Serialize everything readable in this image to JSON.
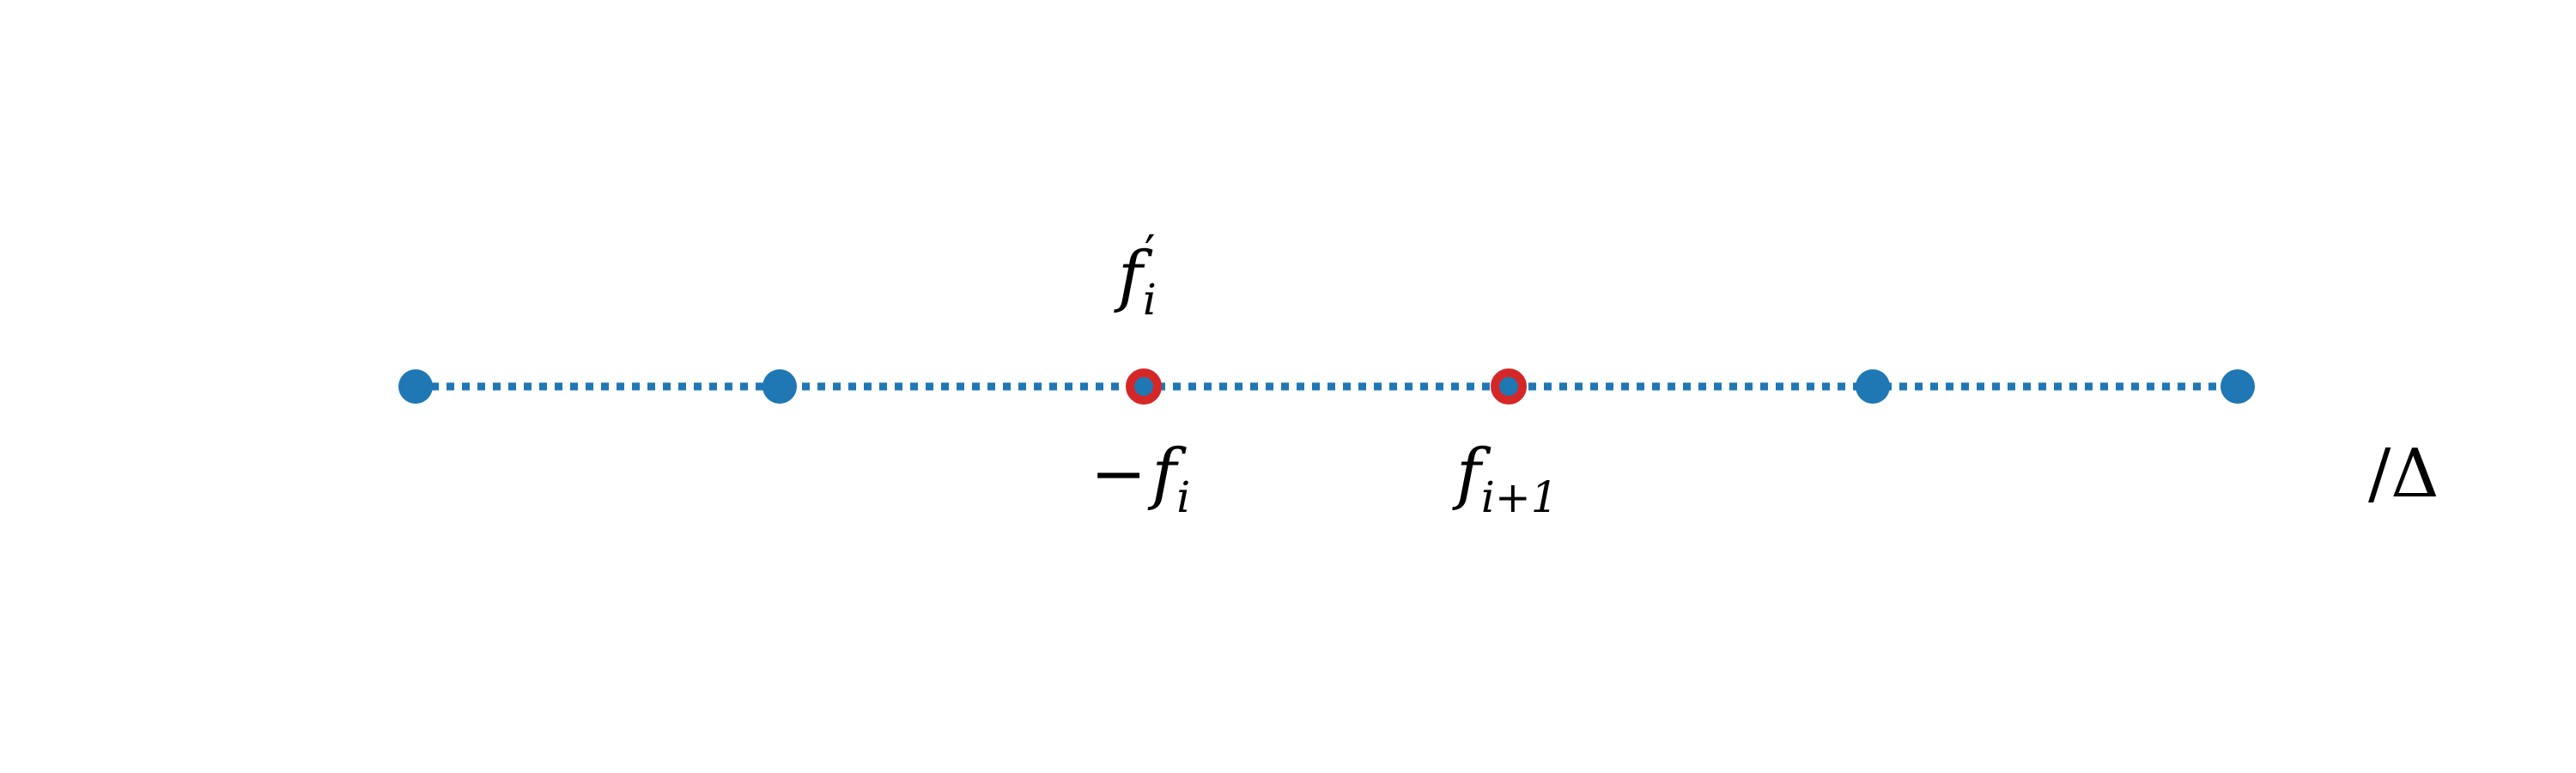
{
  "diagram": {
    "points": [
      {
        "id": "p1",
        "highlighted": false
      },
      {
        "id": "p2",
        "highlighted": false
      },
      {
        "id": "p3",
        "highlighted": true
      },
      {
        "id": "p4",
        "highlighted": true
      },
      {
        "id": "p5",
        "highlighted": false
      },
      {
        "id": "p6",
        "highlighted": false
      }
    ],
    "labels": {
      "above_p3": {
        "base": "f",
        "sub": "i",
        "sup": "′"
      },
      "below_p3": {
        "prefix": "−",
        "base": "f",
        "sub": "i"
      },
      "below_p4": {
        "base": "f",
        "sub": "i+1"
      },
      "right_end": "/Δ"
    },
    "colors": {
      "point": "#1f77b4",
      "highlight_ring": "#d62728",
      "line": "#1f77b4",
      "text": "#000000"
    },
    "line_style": "dotted"
  }
}
